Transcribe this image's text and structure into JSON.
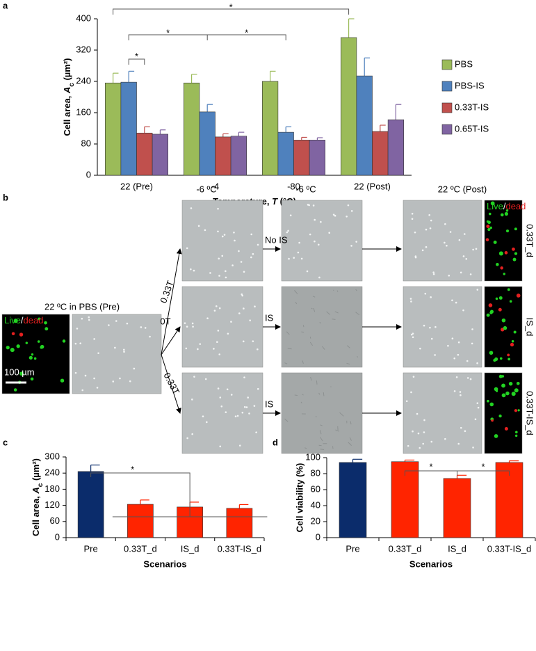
{
  "panel_labels": [
    "a",
    "b",
    "c",
    "d"
  ],
  "chart_data": [
    {
      "type": "bar",
      "categories": [
        "22 (Pre)",
        "-4",
        "-80",
        "22 (Post)"
      ],
      "series": [
        {
          "name": "PBS",
          "color": "#9bbb59",
          "values": [
            236,
            236,
            240,
            352
          ],
          "errors": [
            25,
            22,
            26,
            48
          ]
        },
        {
          "name": "PBS-IS",
          "color": "#4f81bd",
          "values": [
            238,
            162,
            110,
            254
          ],
          "errors": [
            28,
            19,
            14,
            46
          ]
        },
        {
          "name": "0.33T-IS",
          "color": "#c0504d",
          "values": [
            108,
            98,
            90,
            112
          ],
          "errors": [
            16,
            8,
            7,
            16
          ]
        },
        {
          "name": "0.65T-IS",
          "color": "#8064a2",
          "values": [
            105,
            100,
            90,
            142
          ],
          "errors": [
            11,
            10,
            6,
            39
          ]
        }
      ],
      "ylim": [
        0,
        400
      ],
      "yticks": [
        0,
        80,
        160,
        240,
        320,
        400
      ],
      "ylabel": [
        "Cell area, ",
        "A",
        "c",
        " (µm²)"
      ],
      "xlabel": [
        "Temperature, ",
        "T",
        " (°C)"
      ],
      "annotations": [
        "*",
        "*",
        "*",
        "*"
      ],
      "legend": "right"
    },
    {
      "type": "bar",
      "categories": [
        "Pre",
        "0.33T_d",
        "IS_d",
        "0.33T-IS_d"
      ],
      "values": [
        246,
        124,
        114,
        109
      ],
      "errors": [
        24,
        16,
        18,
        14
      ],
      "colors": [
        "#0b2c6b",
        "#ff2400",
        "#ff2400",
        "#ff2400"
      ],
      "ylim": [
        0,
        300
      ],
      "yticks": [
        0,
        60,
        120,
        180,
        240,
        300
      ],
      "ylabel": [
        "Cell area, ",
        "A",
        "c",
        " (µm²)"
      ],
      "xlabel": "Scenarios",
      "annotations": [
        "*"
      ]
    },
    {
      "type": "bar",
      "categories": [
        "Pre",
        "0.33T_d",
        "IS_d",
        "0.33T-IS_d"
      ],
      "values": [
        94,
        95,
        74,
        94
      ],
      "errors": [
        4,
        2,
        4,
        2
      ],
      "colors": [
        "#0b2c6b",
        "#ff2400",
        "#ff2400",
        "#ff2400"
      ],
      "ylim": [
        0,
        100
      ],
      "yticks": [
        0,
        20,
        40,
        60,
        80,
        100
      ],
      "ylabel": "Cell viability (%)",
      "xlabel": "Scenarios",
      "annotations": [
        "*",
        "*"
      ]
    }
  ],
  "panel_b": {
    "pre_title": "22  ºC in PBS (Pre)",
    "stain": {
      "live": "Live",
      "sep": "/",
      "dead": "dead"
    },
    "scale_bar": "100 µm",
    "column_titles": [
      "-6 ºC",
      "-6 ºC",
      "22  ºC (Post)"
    ],
    "branch_labels": [
      "0.33T",
      "0T",
      "0.33T"
    ],
    "treatment_labels": [
      "No IS",
      "IS",
      "IS"
    ],
    "row_labels": [
      "0.33T_d",
      "IS_d",
      "0.33T-IS_d"
    ]
  }
}
